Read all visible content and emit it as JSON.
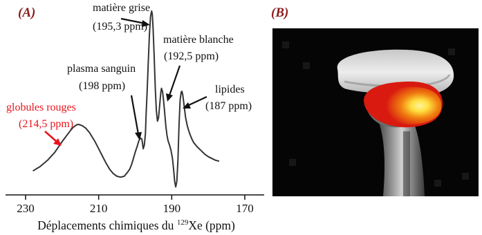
{
  "panel_a": {
    "label": "(A)",
    "chart_data": {
      "type": "line",
      "title": "",
      "xlabel": "Déplacements chimiques du ¹²⁹Xe (ppm)",
      "xlabel_parts": {
        "pre": "Déplacements chimiques du ",
        "sup": "129",
        "post": "Xe (ppm)"
      },
      "ylabel": "",
      "x_reversed": true,
      "xlim": [
        232,
        168
      ],
      "ylim": [
        0,
        1
      ],
      "xticks": [
        230,
        210,
        190,
        170
      ],
      "xtick_labels": [
        "230",
        "210",
        "190",
        "170"
      ],
      "grid": false,
      "color": "#333333",
      "series": [
        {
          "x": [
            228,
            226,
            224,
            222,
            220,
            218,
            217,
            216,
            215.5,
            214.5,
            213.5,
            212.5,
            211,
            210,
            209,
            208,
            207,
            206,
            205,
            204,
            203,
            202,
            201.5,
            201,
            200.5,
            200,
            199.5,
            199,
            198.6,
            198.2,
            198,
            197.8,
            197.5,
            197.2,
            197,
            196.7,
            196.4,
            196.1,
            195.8,
            195.5,
            195.3,
            195.1,
            194.8,
            194.5,
            194.2,
            193.9,
            193.6,
            193.3,
            193,
            192.8,
            192.5,
            192.2,
            191.9,
            191.6,
            191.3,
            191,
            190.6,
            190.2,
            189.8,
            189.5,
            189.2,
            188.9,
            188.6,
            188.3,
            188,
            187.7,
            187.4,
            187.2,
            187,
            186.8,
            186.5,
            186.2,
            185.8,
            185.4,
            185,
            184.5,
            184,
            183,
            182,
            181,
            180,
            179,
            178,
            177
          ],
          "y": [
            0.1,
            0.125,
            0.16,
            0.205,
            0.265,
            0.32,
            0.345,
            0.36,
            0.362,
            0.355,
            0.34,
            0.315,
            0.265,
            0.225,
            0.185,
            0.145,
            0.11,
            0.085,
            0.07,
            0.065,
            0.07,
            0.095,
            0.11,
            0.135,
            0.17,
            0.205,
            0.235,
            0.27,
            0.285,
            0.28,
            0.255,
            0.225,
            0.245,
            0.31,
            0.42,
            0.56,
            0.72,
            0.87,
            0.97,
            1.0,
            0.98,
            0.9,
            0.74,
            0.56,
            0.44,
            0.38,
            0.4,
            0.47,
            0.54,
            0.565,
            0.545,
            0.49,
            0.42,
            0.35,
            0.3,
            0.27,
            0.245,
            0.215,
            0.17,
            0.11,
            0.04,
            0.01,
            0.04,
            0.16,
            0.36,
            0.5,
            0.545,
            0.548,
            0.53,
            0.5,
            0.45,
            0.4,
            0.36,
            0.33,
            0.305,
            0.28,
            0.26,
            0.235,
            0.215,
            0.195,
            0.18,
            0.17,
            0.16,
            0.155
          ]
        }
      ],
      "annotations": [
        {
          "lines": [
            "matière grise",
            "(195,3 ppm)"
          ],
          "x": 195.3,
          "color": "#111111"
        },
        {
          "lines": [
            "matière blanche",
            "(192,5 ppm)"
          ],
          "x": 192.5,
          "color": "#111111"
        },
        {
          "lines": [
            "plasma sanguin",
            "(198 ppm)"
          ],
          "x": 198,
          "color": "#111111"
        },
        {
          "lines": [
            "lipides",
            "(187 ppm)"
          ],
          "x": 187,
          "color": "#111111"
        },
        {
          "lines": [
            "globules rouges",
            "(214,5 ppm)"
          ],
          "x": 214.5,
          "color": "#e8141c"
        }
      ]
    }
  },
  "panel_b": {
    "label": "(B)",
    "image_description": "sagittal brain MRI with xenon signal overlay",
    "overlay_colors": [
      "#d81a10",
      "#f08010",
      "#ffe040"
    ]
  }
}
